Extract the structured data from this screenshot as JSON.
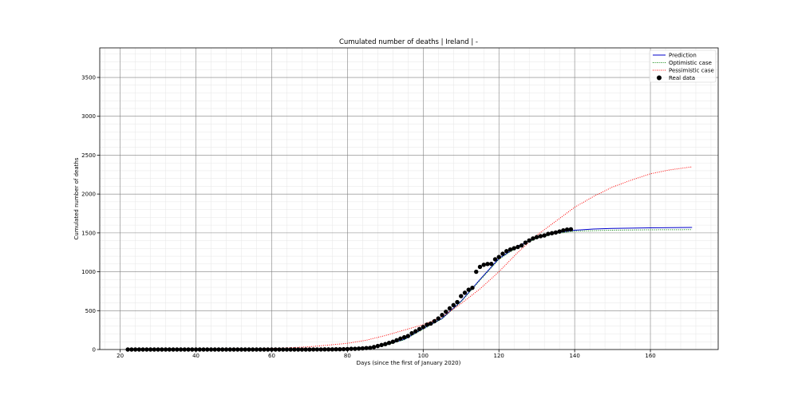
{
  "chart_data": {
    "type": "line",
    "title": "Cumulated number of deaths | Ireland | -",
    "xlabel": "Days (since the first of January 2020)",
    "ylabel": "Cumulated number of deaths",
    "xlim": [
      14.6,
      177.9
    ],
    "ylim": [
      0,
      3880
    ],
    "x_ticks": [
      20,
      40,
      60,
      80,
      100,
      120,
      140,
      160
    ],
    "y_ticks": [
      0,
      500,
      1000,
      1500,
      2000,
      2500,
      3000,
      3500
    ],
    "grid": true,
    "legend_position": "top-right",
    "colors": {
      "prediction": "#0000cc",
      "optimistic": "#008000",
      "pessimistic": "#ff0000",
      "real": "#000000",
      "major_grid": "#808080",
      "minor_grid": "#e6e6e6"
    },
    "series": [
      {
        "name": "Prediction",
        "style": "solid",
        "x": [
          22,
          60,
          70,
          80,
          85,
          90,
          95,
          100,
          105,
          110,
          115,
          120,
          125,
          130,
          135,
          140,
          145,
          150,
          160,
          171
        ],
        "y": [
          0,
          2,
          4,
          10,
          22,
          60,
          130,
          270,
          400,
          620,
          900,
          1170,
          1330,
          1440,
          1500,
          1535,
          1550,
          1558,
          1565,
          1570
        ]
      },
      {
        "name": "Optimistic case",
        "style": "dotted",
        "x": [
          22,
          60,
          70,
          80,
          85,
          90,
          95,
          100,
          105,
          110,
          115,
          120,
          125,
          130,
          135,
          140,
          150,
          160,
          171
        ],
        "y": [
          0,
          1,
          3,
          8,
          20,
          55,
          125,
          262,
          395,
          615,
          890,
          1160,
          1320,
          1430,
          1490,
          1522,
          1535,
          1540,
          1542
        ]
      },
      {
        "name": "Pessimistic case",
        "style": "dotted",
        "x": [
          22,
          40,
          60,
          70,
          80,
          85,
          90,
          95,
          100,
          105,
          110,
          115,
          120,
          125,
          130,
          135,
          140,
          145,
          150,
          155,
          160,
          165,
          171
        ],
        "y": [
          0,
          2,
          12,
          35,
          80,
          120,
          180,
          250,
          320,
          420,
          590,
          780,
          1000,
          1250,
          1470,
          1650,
          1830,
          1970,
          2090,
          2180,
          2260,
          2310,
          2350
        ]
      },
      {
        "name": "Real data",
        "style": "markers",
        "x": [
          22,
          23,
          24,
          25,
          26,
          27,
          28,
          29,
          30,
          31,
          32,
          33,
          34,
          35,
          36,
          37,
          38,
          39,
          40,
          41,
          42,
          43,
          44,
          45,
          46,
          47,
          48,
          49,
          50,
          51,
          52,
          53,
          54,
          55,
          56,
          57,
          58,
          59,
          60,
          61,
          62,
          63,
          64,
          65,
          66,
          67,
          68,
          69,
          70,
          71,
          72,
          73,
          74,
          75,
          76,
          77,
          78,
          79,
          80,
          81,
          82,
          83,
          84,
          85,
          86,
          87,
          88,
          89,
          90,
          91,
          92,
          93,
          94,
          95,
          96,
          97,
          98,
          99,
          100,
          101,
          102,
          103,
          104,
          105,
          106,
          107,
          108,
          109,
          110,
          111,
          112,
          113,
          114,
          115,
          116,
          117,
          118,
          119,
          120,
          121,
          122,
          123,
          124,
          125,
          126,
          127,
          128,
          129,
          130,
          131,
          132,
          133,
          134,
          135,
          136,
          137,
          138,
          139
        ],
        "y": [
          0,
          0,
          0,
          0,
          0,
          0,
          0,
          0,
          0,
          0,
          0,
          0,
          0,
          0,
          0,
          0,
          0,
          0,
          0,
          0,
          0,
          0,
          0,
          0,
          0,
          0,
          0,
          0,
          0,
          0,
          0,
          0,
          0,
          0,
          0,
          0,
          0,
          0,
          0,
          0,
          0,
          0,
          0,
          0,
          0,
          0,
          0,
          0,
          0,
          1,
          1,
          1,
          2,
          2,
          2,
          3,
          3,
          4,
          6,
          9,
          10,
          12,
          15,
          19,
          21,
          32,
          45,
          58,
          70,
          85,
          100,
          120,
          140,
          158,
          174,
          210,
          235,
          263,
          290,
          320,
          334,
          365,
          400,
          444,
          486,
          530,
          571,
          610,
          687,
          730,
          769,
          794,
          1000,
          1063,
          1090,
          1100,
          1102,
          1160,
          1190,
          1232,
          1265,
          1286,
          1303,
          1319,
          1339,
          1375,
          1403,
          1429,
          1446,
          1458,
          1467,
          1488,
          1497,
          1506,
          1518,
          1533,
          1543,
          1547
        ]
      }
    ]
  }
}
